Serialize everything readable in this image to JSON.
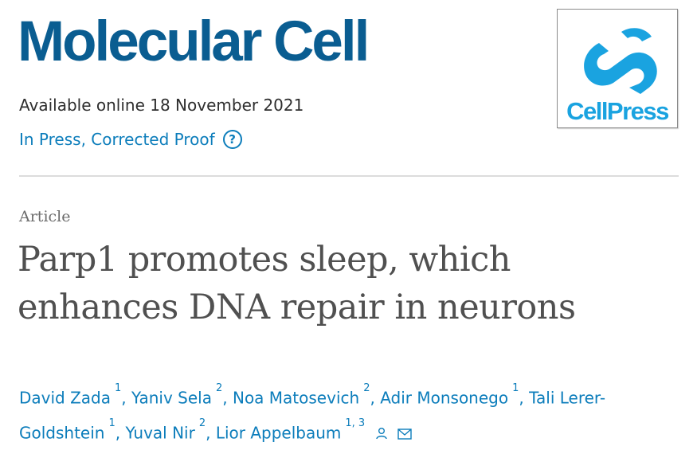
{
  "journal": {
    "title": "Molecular Cell",
    "available_online": "Available online 18 November 2021",
    "status_label": "In Press, Corrected Proof",
    "help_glyph": "?",
    "brand_color": "#0a5d91",
    "link_color": "#0c7dbb"
  },
  "publisher_logo": {
    "name": "CellPress",
    "icon": "cellpress-logo",
    "color": "#1aa3e0"
  },
  "article": {
    "type": "Article",
    "title_line1": "Parp1 promotes sleep, which",
    "title_line2": "enhances DNA repair in neurons"
  },
  "authors": [
    {
      "name": "David Zada",
      "affil": "1"
    },
    {
      "name": "Yaniv Sela",
      "affil": "2"
    },
    {
      "name": "Noa Matosevich",
      "affil": "2"
    },
    {
      "name": "Adir Monsonego",
      "affil": "1"
    },
    {
      "name": "Tali Lerer-Goldshtein",
      "affil": "1"
    },
    {
      "name": "Yuval Nir",
      "affil": "2"
    },
    {
      "name": "Lior Appelbaum",
      "affil": "1, 3"
    }
  ],
  "author_icons": [
    "person-icon",
    "mail-icon"
  ]
}
